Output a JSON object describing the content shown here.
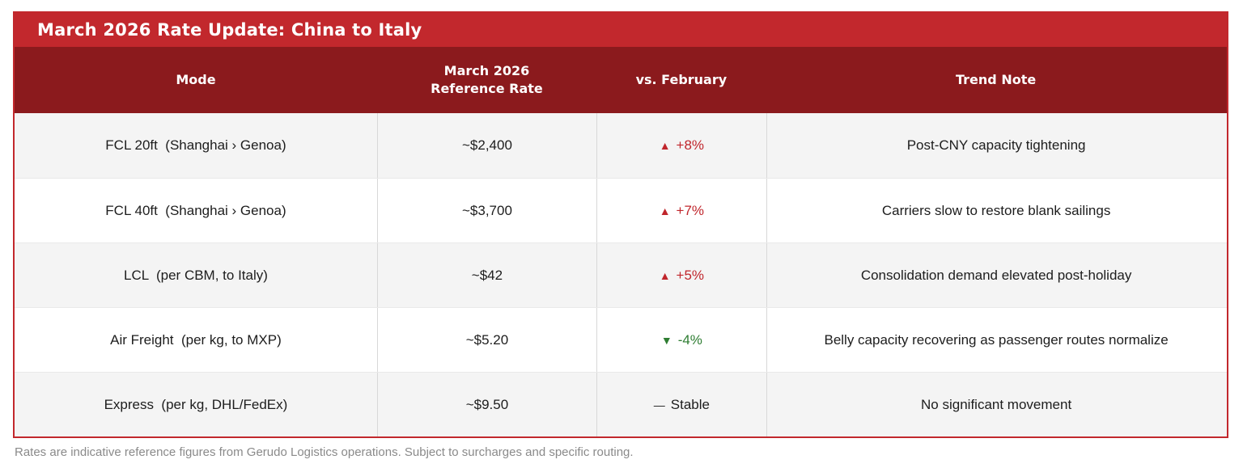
{
  "title": "March 2026 Rate Update: China to Italy",
  "colors": {
    "title_bar_bg": "#C2282D",
    "header_bg": "#8B1A1D",
    "table_border": "#C2282D",
    "up_trend": "#C0262C",
    "down_trend": "#2E7D32",
    "stable_trend": "#1D1D1D",
    "alt_row_bg": "#F4F4F4",
    "footnote_text": "#8A8A8A"
  },
  "table": {
    "headers": {
      "mode": "Mode",
      "rate": "March 2026\nReference Rate",
      "vs_february": "vs. February",
      "trend_note": "Trend Note"
    },
    "rows": [
      {
        "mode": "FCL 20ft  (Shanghai › Genoa)",
        "rate": "~$2,400",
        "trend": "up",
        "change_icon": "▲",
        "change_text": "+8%",
        "note": "Post-CNY capacity tightening"
      },
      {
        "mode": "FCL 40ft  (Shanghai › Genoa)",
        "rate": "~$3,700",
        "trend": "up",
        "change_icon": "▲",
        "change_text": "+7%",
        "note": "Carriers slow to restore blank sailings"
      },
      {
        "mode": "LCL  (per CBM, to Italy)",
        "rate": "~$42",
        "trend": "up",
        "change_icon": "▲",
        "change_text": "+5%",
        "note": "Consolidation demand elevated post-holiday"
      },
      {
        "mode": "Air Freight  (per kg, to MXP)",
        "rate": "~$5.20",
        "trend": "down",
        "change_icon": "▼",
        "change_text": "-4%",
        "note": "Belly capacity recovering as passenger routes normalize"
      },
      {
        "mode": "Express  (per kg, DHL/FedEx)",
        "rate": "~$9.50",
        "trend": "stable",
        "change_icon": "—",
        "change_text": "Stable",
        "note": "No significant movement"
      }
    ]
  },
  "footnote": "Rates are indicative reference figures from Gerudo Logistics operations. Subject to surcharges and specific routing."
}
